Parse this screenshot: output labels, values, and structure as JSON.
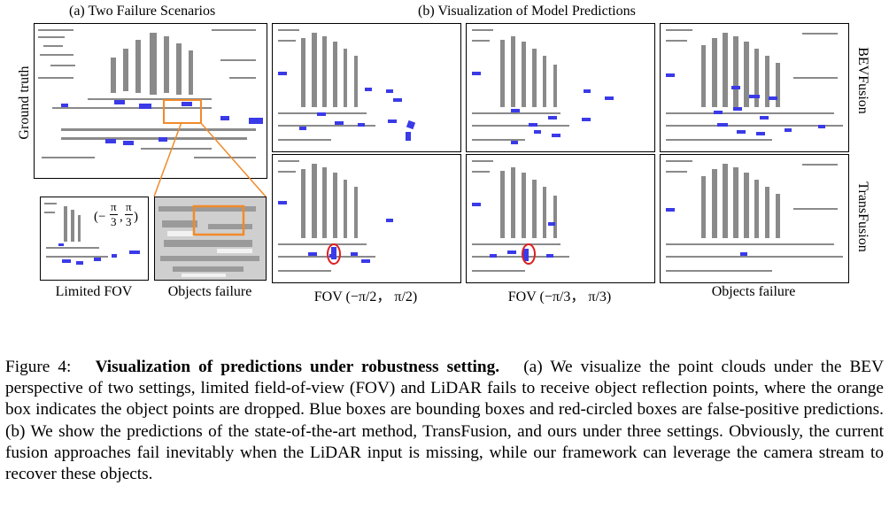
{
  "headers": {
    "a": "(a) Two Failure Scenarios",
    "b": "(b) Visualization of Model Predictions"
  },
  "row_labels": {
    "ground_truth": "Ground truth",
    "bevfusion": "BEVFusion",
    "transfusion": "TransFusion"
  },
  "bottom_labels": {
    "limited_fov": "Limited FOV",
    "objects_failure_a": "Objects failure",
    "fov_pi2": "FOV (−π/2， π/2)",
    "fov_pi3": "FOV (−π/3， π/3)",
    "objects_failure_b": "Objects failure"
  },
  "fov_annotation": {
    "open": "(−",
    "num1": "π",
    "den1": "3",
    "comma": ",",
    "num2": "π",
    "den2": "3",
    "close": ")"
  },
  "caption": {
    "figure_label": "Figure 4:",
    "title": "Visualization of predictions under robustness setting.",
    "body": "(a) We visualize the point clouds under the BEV perspective of two settings, limited field-of-view (FOV) and LiDAR fails to receive object reflection points, where the orange box indicates the object points are dropped. Blue boxes are bounding boxes and red-circled boxes are false-positive predictions. (b) We show the predictions of the state-of-the-art method, TransFusion, and ours under three settings. Obviously, the current fusion approaches fail inevitably when the LiDAR input is missing, while our framework can leverage the camera stream to recover these objects."
  },
  "colors": {
    "box_blue": "#3a3ae8",
    "highlight_orange": "#f08a2a",
    "false_positive_red": "#e02020",
    "points_gray": "#808080"
  }
}
